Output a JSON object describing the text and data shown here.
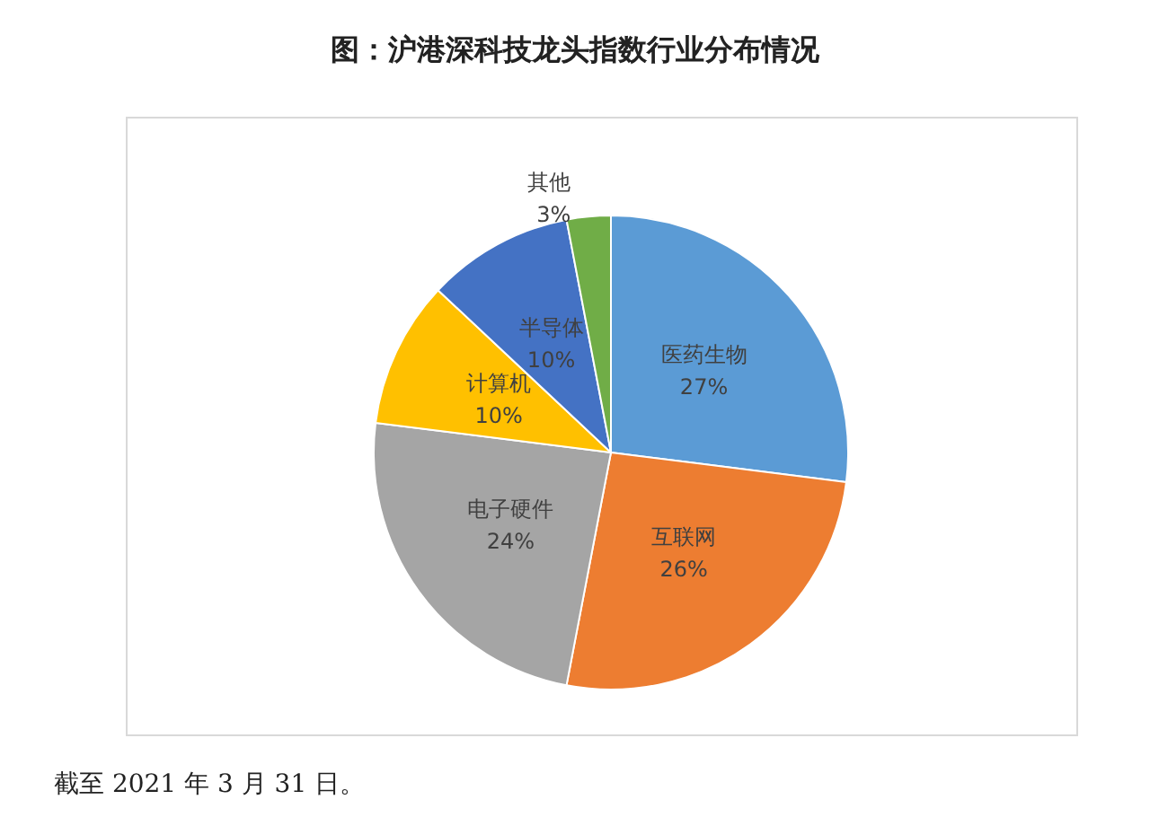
{
  "chart_data": {
    "type": "pie",
    "title": "图：沪港深科技龙头指数行业分布情况",
    "categories": [
      "医药生物",
      "互联网",
      "电子硬件",
      "计算机",
      "半导体",
      "其他"
    ],
    "values": [
      27,
      26,
      24,
      10,
      10,
      3
    ],
    "colors": [
      "#5b9bd5",
      "#ed7d31",
      "#a5a5a5",
      "#ffc000",
      "#4472c4",
      "#70ad47"
    ],
    "value_labels": [
      "27%",
      "26%",
      "24%",
      "10%",
      "10%",
      "3%"
    ],
    "legend": false,
    "annotations": [
      "截至 2021 年 3 月 31 日。"
    ]
  }
}
